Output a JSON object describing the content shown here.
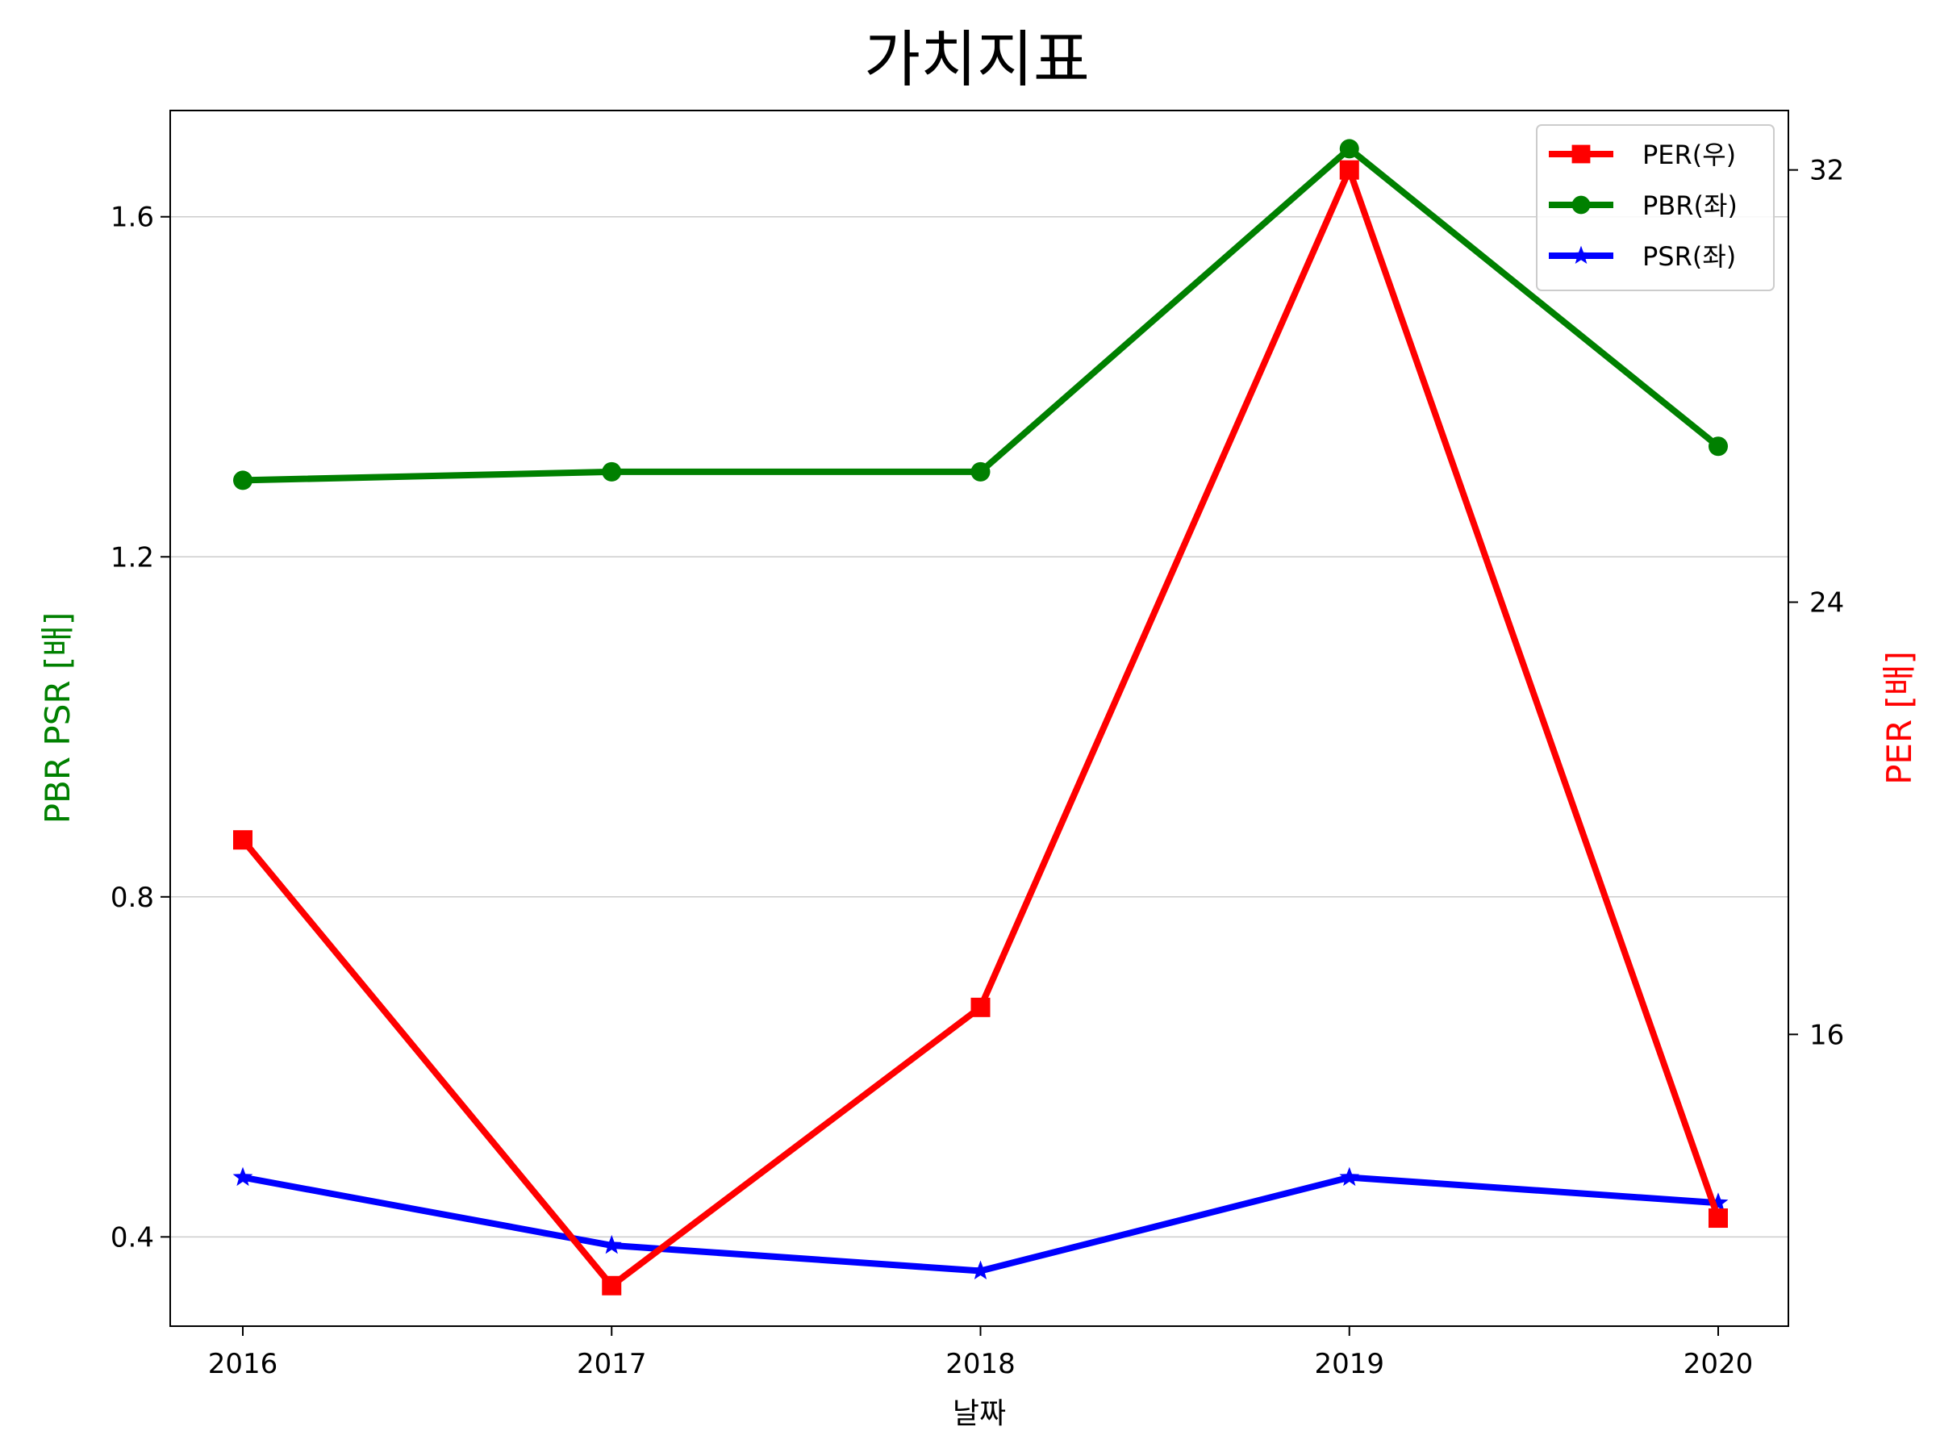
{
  "chart_data": {
    "type": "line",
    "title": "가치지표",
    "xlabel": "날짜",
    "ylabel_left": "PBR PSR [배]",
    "ylabel_right": "PER [배]",
    "ylabel_left_color": "#008000",
    "ylabel_right_color": "#ff0000",
    "categories": [
      "2016",
      "2017",
      "2018",
      "2019",
      "2020"
    ],
    "ylim_left": [
      0.295,
      1.725
    ],
    "ylim_right": [
      10.6,
      33.1
    ],
    "yticks_left": [
      "0.4",
      "0.8",
      "1.2",
      "1.6"
    ],
    "yticks_right": [
      "16",
      "24",
      "32"
    ],
    "grid": "horizontal",
    "legend_position": "upper right",
    "series": [
      {
        "name": "PER(우)",
        "axis": "right",
        "color": "#ff0000",
        "marker": "square",
        "values": [
          19.6,
          11.35,
          16.5,
          32.0,
          12.6
        ]
      },
      {
        "name": "PBR(좌)",
        "axis": "left",
        "color": "#008000",
        "marker": "circle",
        "values": [
          1.29,
          1.3,
          1.3,
          1.68,
          1.33
        ]
      },
      {
        "name": "PSR(좌)",
        "axis": "left",
        "color": "#0000ff",
        "marker": "star",
        "values": [
          0.47,
          0.39,
          0.36,
          0.47,
          0.44
        ]
      }
    ]
  }
}
